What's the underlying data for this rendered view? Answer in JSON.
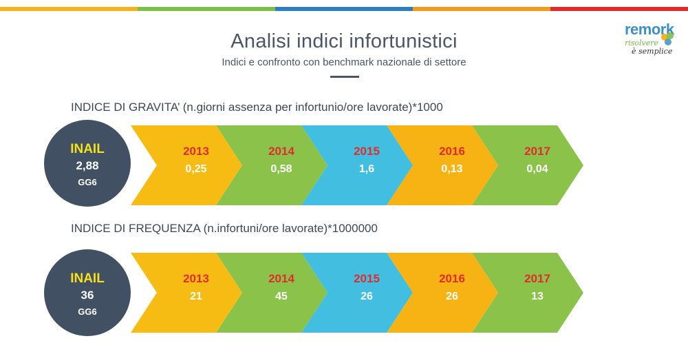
{
  "top_bar_colors": [
    "#f4b21d",
    "#7fbf45",
    "#2d7fc1",
    "#f39a1e",
    "#e32b2b"
  ],
  "header": {
    "title": "Analisi indici infortunistici",
    "subtitle": "Indici e confronto con benchmark nazionale di settore"
  },
  "logo": {
    "word": "remork",
    "tagline_1": "risolvere",
    "tagline_2": "è semplice"
  },
  "colors": {
    "circle": "#415063",
    "circle_label": "#f6e11a",
    "year_text": "#e22c2c",
    "chevrons": [
      "#f7bc14",
      "#8bc34a",
      "#42bfe0",
      "#f7b214",
      "#8bc34a"
    ]
  },
  "gravita": {
    "label": "INDICE DI GRAVITA’  (n.giorni assenza per infortunio/ore lavorate)*1000",
    "benchmark": {
      "label": "INAIL",
      "value": "2,88",
      "unit": "GG6"
    },
    "steps": [
      {
        "year": "2013",
        "value": "0,25"
      },
      {
        "year": "2014",
        "value": "0,58"
      },
      {
        "year": "2015",
        "value": "1,6"
      },
      {
        "year": "2016",
        "value": "0,13"
      },
      {
        "year": "2017",
        "value": "0,04"
      }
    ]
  },
  "frequenza": {
    "label": "INDICE DI FREQUENZA  (n.infortuni/ore lavorate)*1000000",
    "benchmark": {
      "label": "INAIL",
      "value": "36",
      "unit": "GG6"
    },
    "steps": [
      {
        "year": "2013",
        "value": "21"
      },
      {
        "year": "2014",
        "value": "45"
      },
      {
        "year": "2015",
        "value": "26"
      },
      {
        "year": "2016",
        "value": "26"
      },
      {
        "year": "2017",
        "value": "13"
      }
    ]
  }
}
